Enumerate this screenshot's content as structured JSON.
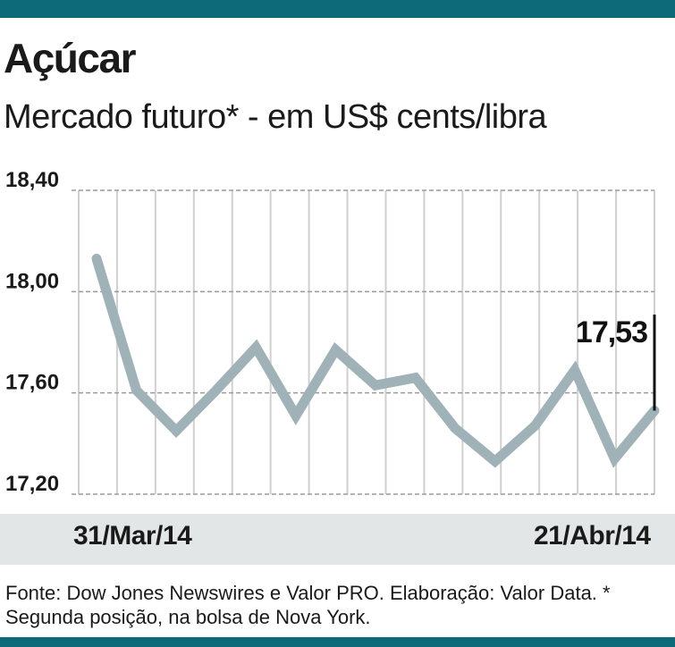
{
  "title": "Açúcar",
  "subtitle": "Mercado futuro* - em US$ cents/libra",
  "source": "Fonte: Dow Jones Newswires e Valor PRO. Elaboração: Valor Data. * Segunda posição, na bolsa de Nova York.",
  "colors": {
    "line": "#9fb2b7",
    "accent": "#0d6a78",
    "grid": "#d0d0d0",
    "band": "#e3e6e6"
  },
  "chart_data": {
    "type": "line",
    "title": "Açúcar",
    "subtitle": "Mercado futuro* - em US$ cents/libra",
    "ylim": [
      17.2,
      18.4
    ],
    "yticks": [
      "18,40",
      "18,00",
      "17,60",
      "17,20"
    ],
    "ytick_values": [
      18.4,
      18.0,
      17.6,
      17.2
    ],
    "x_labels": [
      "31/Mar/14",
      "21/Abr/14"
    ],
    "grid": "vertical and horizontal",
    "series": [
      {
        "values": [
          18.13,
          17.61,
          17.45,
          17.61,
          17.78,
          17.51,
          17.77,
          17.63,
          17.66,
          17.46,
          17.33,
          17.47,
          17.69,
          17.34,
          17.53
        ]
      }
    ],
    "annotation": {
      "label": "17,53",
      "point_index": 14
    }
  }
}
